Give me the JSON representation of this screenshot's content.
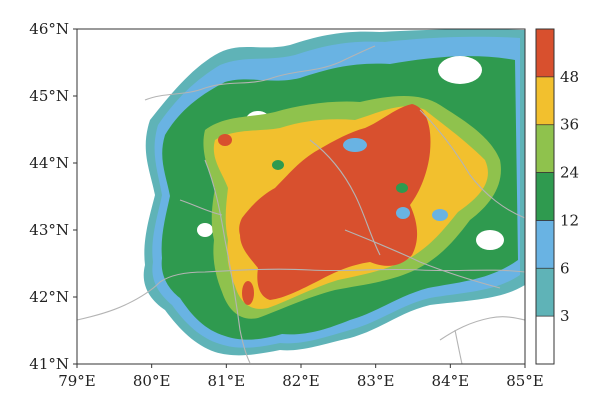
{
  "map": {
    "lon_labels": [
      "79°E",
      "80°E",
      "81°E",
      "82°E",
      "83°E",
      "84°E",
      "85°E"
    ],
    "lat_labels": [
      "46°N",
      "45°N",
      "44°N",
      "43°N",
      "42°N",
      "41°N"
    ],
    "lon_range": [
      79,
      85
    ],
    "lat_range": [
      41,
      46
    ],
    "background": "#ffffff",
    "boundary_color": "#b4b4b4"
  },
  "colorbar": {
    "labels": [
      "48",
      "36",
      "24",
      "12",
      "6",
      "3"
    ],
    "levels": [
      3,
      6,
      12,
      24,
      36,
      48
    ],
    "colors": [
      "#ffffff",
      "#5fb3b7",
      "#69b3e3",
      "#2f9a4f",
      "#8fc24d",
      "#f2c02e",
      "#d8502e"
    ]
  }
}
